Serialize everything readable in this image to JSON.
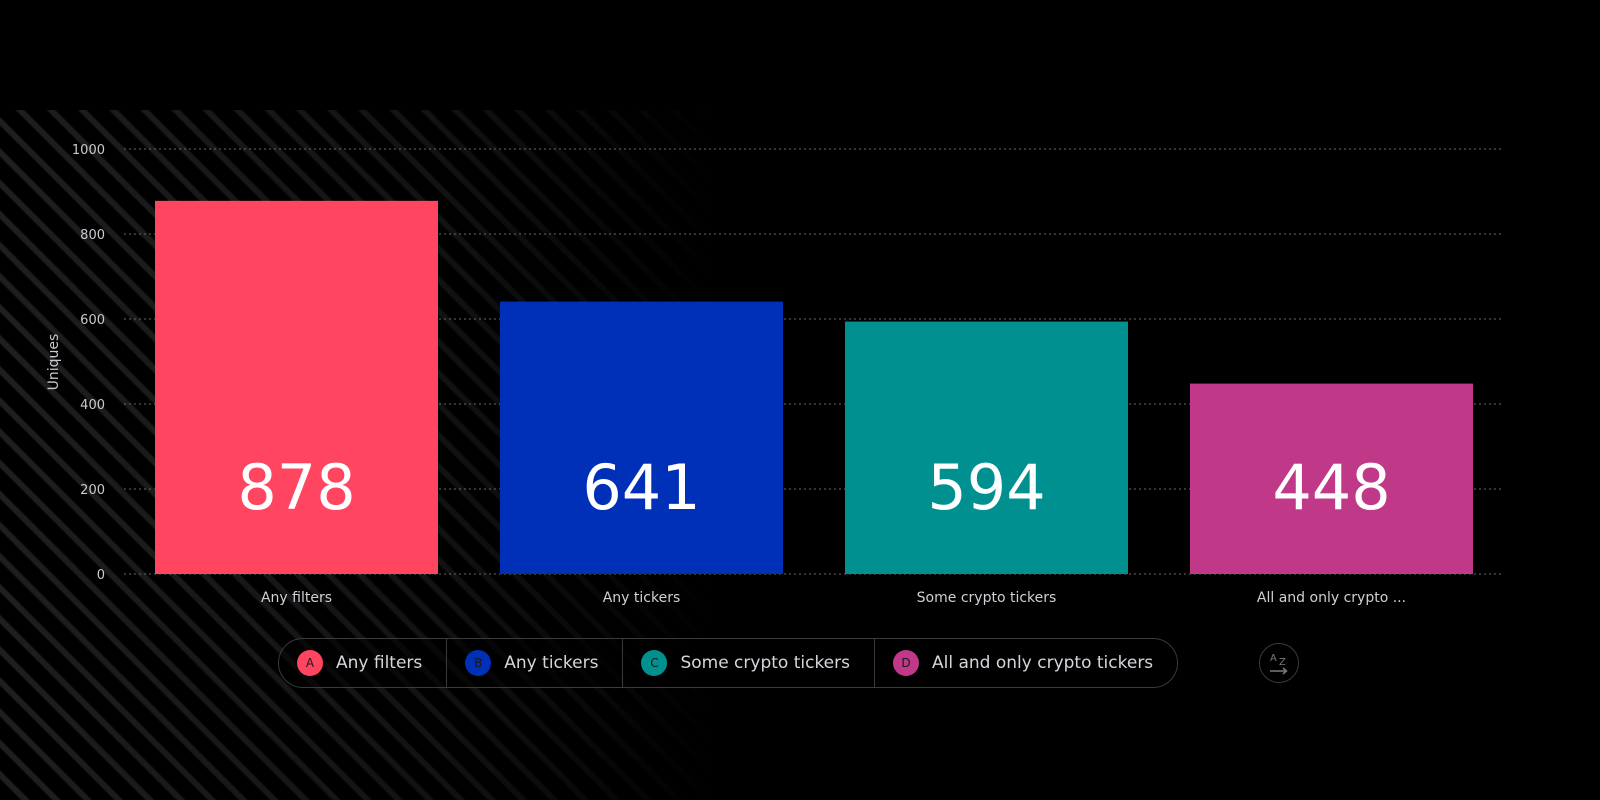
{
  "chart_data": {
    "type": "bar",
    "categories": [
      "Any filters",
      "Any tickers",
      "Some crypto tickers",
      "All and only crypto ..."
    ],
    "values": [
      878,
      641,
      594,
      448
    ],
    "value_labels": [
      "878",
      "641",
      "594",
      "448"
    ],
    "colors": [
      "#ff4560",
      "#0030b8",
      "#009090",
      "#c03888"
    ],
    "ylabel": "Uniques",
    "ylim": [
      0,
      1000
    ],
    "yticks": [
      0,
      200,
      400,
      600,
      800,
      1000
    ],
    "ytick_labels": [
      "0",
      "200",
      "400",
      "600",
      "800",
      "1000"
    ],
    "grid": true,
    "legend_placement": "bottom"
  },
  "legend": {
    "items": [
      {
        "badge": "A",
        "label": "Any filters",
        "color": "#ff4560"
      },
      {
        "badge": "B",
        "label": "Any tickers",
        "color": "#0030b8"
      },
      {
        "badge": "C",
        "label": "Some crypto tickers",
        "color": "#009090"
      },
      {
        "badge": "D",
        "label": "All and only crypto tickers",
        "color": "#c03888"
      }
    ]
  },
  "sort_button": {
    "icon": "sort-az-icon",
    "top_letter": "A",
    "bottom_letter": "Z"
  }
}
